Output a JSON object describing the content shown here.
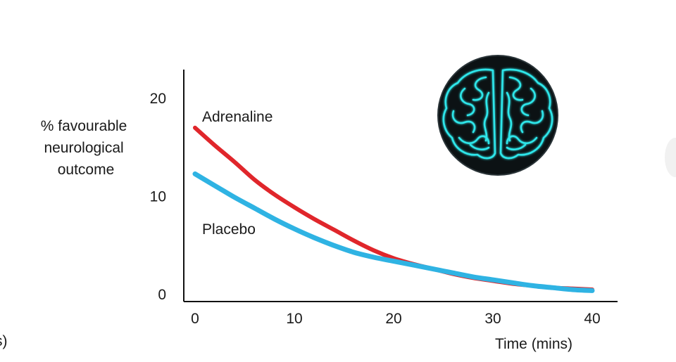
{
  "chart_data": {
    "type": "line",
    "title": "",
    "xlabel": "Time (mins)",
    "ylabel": [
      "% favourable",
      "neurological",
      "outcome"
    ],
    "xlim": [
      0,
      40
    ],
    "ylim": [
      0,
      20
    ],
    "x_ticks": [
      0,
      10,
      20,
      30,
      40
    ],
    "y_ticks": [
      0,
      10,
      20
    ],
    "grid": false,
    "legend": "inline labels",
    "series": [
      {
        "name": "Adrenaline",
        "color": "#e0262b",
        "x": [
          0,
          2,
          4,
          6,
          8,
          10,
          12,
          14,
          16,
          18,
          20,
          22,
          24,
          26,
          28,
          30,
          32,
          34,
          36,
          38,
          40
        ],
        "y": [
          17.0,
          15.2,
          13.5,
          11.7,
          10.2,
          8.9,
          7.7,
          6.6,
          5.5,
          4.5,
          3.7,
          3.1,
          2.6,
          2.1,
          1.7,
          1.4,
          1.1,
          0.9,
          0.7,
          0.6,
          0.5
        ]
      },
      {
        "name": "Placebo",
        "color": "#2fb3e3",
        "x": [
          0,
          2,
          4,
          6,
          8,
          10,
          12,
          14,
          16,
          18,
          20,
          22,
          24,
          26,
          28,
          30,
          32,
          34,
          36,
          38,
          40
        ],
        "y": [
          12.3,
          11.1,
          9.9,
          8.8,
          7.7,
          6.7,
          5.8,
          5.0,
          4.3,
          3.8,
          3.4,
          3.0,
          2.6,
          2.2,
          1.8,
          1.5,
          1.2,
          0.9,
          0.7,
          0.5,
          0.4
        ]
      }
    ],
    "decoration": "brain-icon",
    "edge_text": "s)"
  }
}
